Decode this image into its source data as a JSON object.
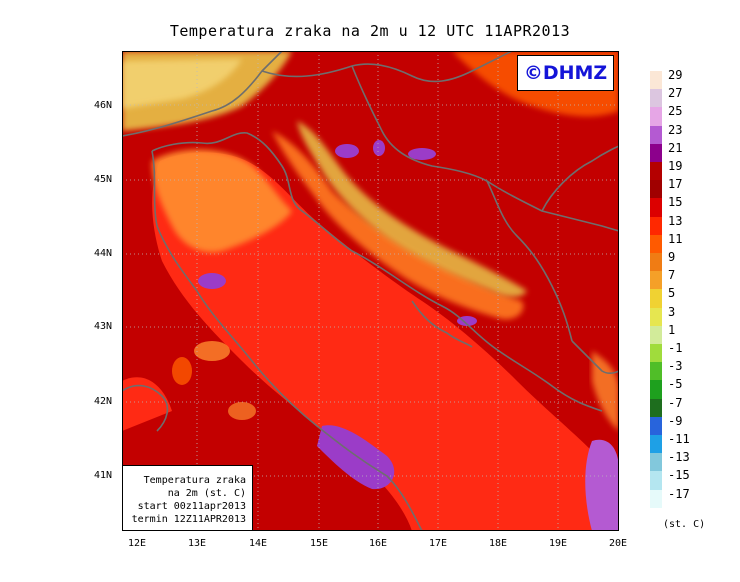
{
  "title": "Temperatura zraka na 2m u 12 UTC 11APR2013",
  "logo": "©DHMZ",
  "info_box": {
    "line1": "Temperatura zraka",
    "line2": "na 2m (st. C)",
    "line3": "start 00z11apr2013",
    "line4": "termin 12Z11APR2013"
  },
  "lat_labels": [
    "46N",
    "45N",
    "44N",
    "43N",
    "42N",
    "41N"
  ],
  "lon_labels": [
    "12E",
    "13E",
    "14E",
    "15E",
    "16E",
    "17E",
    "18E",
    "19E",
    "20E"
  ],
  "legend": {
    "unit": "(st. C)",
    "labels": [
      "29",
      "27",
      "25",
      "23",
      "21",
      "19",
      "17",
      "15",
      "13",
      "11",
      "9",
      "7",
      "5",
      "3",
      "1",
      "-1",
      "-3",
      "-5",
      "-7",
      "-9",
      "-11",
      "-13",
      "-15",
      "-17"
    ],
    "colors": [
      "#fbe7d6",
      "#dcc6e0",
      "#e6a6e6",
      "#b45ad2",
      "#8c008c",
      "#b40000",
      "#a00000",
      "#dc0000",
      "#ff2800",
      "#ff5a00",
      "#f07c14",
      "#f5a028",
      "#f0d232",
      "#e6e650",
      "#d2eb9a",
      "#a0dc3c",
      "#50be28",
      "#1ea01e",
      "#1e6e1e",
      "#2864dc",
      "#1ea0e6",
      "#82c8dc",
      "#b4e6f0",
      "#e6fafa"
    ]
  },
  "colors": {
    "sea": "#ff2a14",
    "land_base": "#c30000",
    "warm_coast": "#ff8a2e",
    "mountain": "#e8c24a",
    "hot_spot": "#9b3cc8",
    "border_line": "#6e6e6e"
  }
}
